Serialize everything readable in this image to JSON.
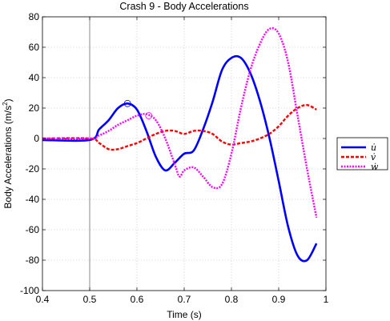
{
  "chart_data": {
    "type": "line",
    "title": "Crash 9 - Body Accelerations",
    "xlabel": "Time (s)",
    "ylabel_main": "Body Accelerations (m/s",
    "ylabel_sup": "2",
    "ylabel_tail": ")",
    "xlim": [
      0.4,
      1.0
    ],
    "ylim": [
      -100,
      80
    ],
    "xticks": [
      "0.4",
      "0.5",
      "0.6",
      "0.7",
      "0.8",
      "0.9",
      "1"
    ],
    "xtick_values": [
      0.4,
      0.5,
      0.6,
      0.7,
      0.8,
      0.9,
      1.0
    ],
    "yticks": [
      "80",
      "60",
      "40",
      "20",
      "0",
      "-20",
      "-40",
      "-60",
      "-80",
      "-100"
    ],
    "ytick_values": [
      80,
      60,
      40,
      20,
      0,
      -20,
      -40,
      -60,
      -80,
      -100
    ],
    "grid": true,
    "legend_position": "outside-right",
    "vertical_marker_x": 0.5,
    "series": [
      {
        "name": "u̇",
        "color": "#0000ff",
        "style": "solid",
        "marker_x": 0.58,
        "x": [
          0.4,
          0.5,
          0.52,
          0.54,
          0.56,
          0.58,
          0.6,
          0.62,
          0.64,
          0.66,
          0.68,
          0.7,
          0.72,
          0.74,
          0.76,
          0.78,
          0.8,
          0.82,
          0.84,
          0.86,
          0.88,
          0.9,
          0.92,
          0.94,
          0.96,
          0.98
        ],
        "y": [
          -1,
          -1,
          6,
          12,
          20,
          23,
          19,
          5,
          -12,
          -21,
          -16,
          -10,
          -8,
          6,
          24,
          45,
          53,
          53,
          43,
          25,
          1,
          -28,
          -58,
          -77,
          -80,
          -69
        ]
      },
      {
        "name": "v̇",
        "color": "#ff0000",
        "style": "dashed",
        "x": [
          0.4,
          0.5,
          0.52,
          0.54,
          0.56,
          0.58,
          0.6,
          0.62,
          0.64,
          0.66,
          0.68,
          0.7,
          0.72,
          0.74,
          0.76,
          0.78,
          0.8,
          0.82,
          0.84,
          0.86,
          0.88,
          0.9,
          0.92,
          0.94,
          0.96,
          0.98
        ],
        "y": [
          0,
          0,
          -3,
          -7,
          -7,
          -5,
          -3,
          0,
          3,
          5,
          5,
          3,
          5,
          5,
          3,
          -2,
          -4,
          -3,
          -2,
          0,
          3,
          8,
          15,
          20,
          22,
          19
        ]
      },
      {
        "name": "ẇ",
        "color": "#ff00ff",
        "style": "dotted",
        "marker_x": 0.625,
        "x": [
          0.4,
          0.5,
          0.52,
          0.54,
          0.56,
          0.58,
          0.6,
          0.62,
          0.64,
          0.66,
          0.68,
          0.69,
          0.7,
          0.72,
          0.74,
          0.76,
          0.78,
          0.8,
          0.82,
          0.84,
          0.86,
          0.88,
          0.9,
          0.92,
          0.94,
          0.96,
          0.98
        ],
        "y": [
          0,
          0,
          2,
          5,
          9,
          12,
          15,
          16,
          12,
          0,
          -17,
          -25,
          -21,
          -19,
          -25,
          -32,
          -30,
          -10,
          20,
          45,
          62,
          72,
          69,
          50,
          15,
          -20,
          -52
        ]
      }
    ]
  }
}
